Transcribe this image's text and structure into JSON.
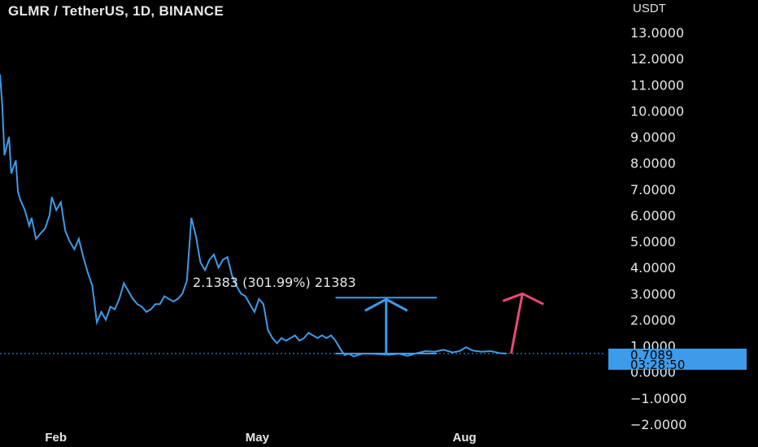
{
  "header": {
    "title": "GLMR / TetherUS, 1D, BINANCE",
    "unit": "USDT"
  },
  "chart_data": {
    "type": "line",
    "title": "GLMR / TetherUS, 1D, BINANCE",
    "ylabel": "USDT",
    "ylim": [
      -2.0,
      13.0
    ],
    "y_ticks": [
      {
        "value": 13,
        "label": "13.0000"
      },
      {
        "value": 12,
        "label": "12.0000"
      },
      {
        "value": 11,
        "label": "11.0000"
      },
      {
        "value": 10,
        "label": "10.0000"
      },
      {
        "value": 9,
        "label": "9.0000"
      },
      {
        "value": 8,
        "label": "8.0000"
      },
      {
        "value": 7,
        "label": "7.0000"
      },
      {
        "value": 6,
        "label": "6.0000"
      },
      {
        "value": 5,
        "label": "5.0000"
      },
      {
        "value": 4,
        "label": "4.0000"
      },
      {
        "value": 3,
        "label": "3.0000"
      },
      {
        "value": 2,
        "label": "2.0000"
      },
      {
        "value": 1,
        "label": "1.0000"
      },
      {
        "value": 0,
        "label": "0.0000"
      },
      {
        "value": -1,
        "label": "−1.0000"
      },
      {
        "value": -2,
        "label": "−2.0000"
      }
    ],
    "x_ticks": [
      {
        "date": "2022-02-01",
        "label": "Feb"
      },
      {
        "date": "2022-05-01",
        "label": "May"
      },
      {
        "date": "2022-08-01",
        "label": "Aug"
      }
    ],
    "xlim": [
      "2022-01-12",
      "2022-11-15"
    ],
    "series": [
      {
        "color": "#3d9be9",
        "points": [
          [
            "2022-01-12",
            11.4
          ],
          [
            "2022-01-13",
            10.2
          ],
          [
            "2022-01-14",
            8.3
          ],
          [
            "2022-01-16",
            9.0
          ],
          [
            "2022-01-17",
            7.6
          ],
          [
            "2022-01-19",
            8.1
          ],
          [
            "2022-01-20",
            6.9
          ],
          [
            "2022-01-21",
            6.6
          ],
          [
            "2022-01-23",
            6.2
          ],
          [
            "2022-01-25",
            5.6
          ],
          [
            "2022-01-26",
            5.9
          ],
          [
            "2022-01-28",
            5.1
          ],
          [
            "2022-01-30",
            5.3
          ],
          [
            "2022-02-01",
            5.5
          ],
          [
            "2022-02-03",
            6.0
          ],
          [
            "2022-02-04",
            6.7
          ],
          [
            "2022-02-06",
            6.2
          ],
          [
            "2022-02-08",
            6.5
          ],
          [
            "2022-02-10",
            5.4
          ],
          [
            "2022-02-12",
            5.0
          ],
          [
            "2022-02-14",
            4.7
          ],
          [
            "2022-02-16",
            5.1
          ],
          [
            "2022-02-18",
            4.4
          ],
          [
            "2022-02-20",
            3.8
          ],
          [
            "2022-02-22",
            3.3
          ],
          [
            "2022-02-24",
            1.9
          ],
          [
            "2022-02-26",
            2.3
          ],
          [
            "2022-02-28",
            2.0
          ],
          [
            "2022-03-02",
            2.5
          ],
          [
            "2022-03-04",
            2.4
          ],
          [
            "2022-03-06",
            2.8
          ],
          [
            "2022-03-08",
            3.4
          ],
          [
            "2022-03-10",
            3.1
          ],
          [
            "2022-03-12",
            2.8
          ],
          [
            "2022-03-14",
            2.6
          ],
          [
            "2022-03-16",
            2.5
          ],
          [
            "2022-03-18",
            2.3
          ],
          [
            "2022-03-20",
            2.4
          ],
          [
            "2022-03-22",
            2.6
          ],
          [
            "2022-03-24",
            2.6
          ],
          [
            "2022-03-26",
            2.9
          ],
          [
            "2022-03-28",
            2.8
          ],
          [
            "2022-03-30",
            2.7
          ],
          [
            "2022-04-01",
            2.8
          ],
          [
            "2022-04-03",
            3.0
          ],
          [
            "2022-04-05",
            3.5
          ],
          [
            "2022-04-07",
            5.9
          ],
          [
            "2022-04-09",
            5.2
          ],
          [
            "2022-04-11",
            4.2
          ],
          [
            "2022-04-13",
            3.9
          ],
          [
            "2022-04-15",
            4.3
          ],
          [
            "2022-04-17",
            4.5
          ],
          [
            "2022-04-19",
            4.0
          ],
          [
            "2022-04-21",
            4.3
          ],
          [
            "2022-04-23",
            4.4
          ],
          [
            "2022-04-25",
            3.7
          ],
          [
            "2022-04-27",
            3.3
          ],
          [
            "2022-04-29",
            3.0
          ],
          [
            "2022-05-01",
            2.9
          ],
          [
            "2022-05-03",
            2.6
          ],
          [
            "2022-05-05",
            2.3
          ],
          [
            "2022-05-07",
            2.8
          ],
          [
            "2022-05-09",
            2.6
          ],
          [
            "2022-05-11",
            1.6
          ],
          [
            "2022-05-13",
            1.3
          ],
          [
            "2022-05-15",
            1.1
          ],
          [
            "2022-05-17",
            1.3
          ],
          [
            "2022-05-19",
            1.2
          ],
          [
            "2022-05-21",
            1.3
          ],
          [
            "2022-05-23",
            1.4
          ],
          [
            "2022-05-25",
            1.2
          ],
          [
            "2022-05-27",
            1.3
          ],
          [
            "2022-05-29",
            1.5
          ],
          [
            "2022-05-31",
            1.4
          ],
          [
            "2022-06-02",
            1.3
          ],
          [
            "2022-06-04",
            1.4
          ],
          [
            "2022-06-06",
            1.3
          ],
          [
            "2022-06-08",
            1.4
          ],
          [
            "2022-06-10",
            1.2
          ],
          [
            "2022-06-12",
            0.9
          ],
          [
            "2022-06-14",
            0.65
          ],
          [
            "2022-06-16",
            0.7
          ],
          [
            "2022-06-18",
            0.6
          ],
          [
            "2022-06-20",
            0.65
          ],
          [
            "2022-06-22",
            0.7
          ],
          [
            "2022-06-26",
            0.7
          ],
          [
            "2022-06-30",
            0.68
          ],
          [
            "2022-07-04",
            0.66
          ],
          [
            "2022-07-08",
            0.7
          ],
          [
            "2022-07-12",
            0.62
          ],
          [
            "2022-07-16",
            0.72
          ],
          [
            "2022-07-20",
            0.8
          ],
          [
            "2022-07-24",
            0.78
          ],
          [
            "2022-07-28",
            0.85
          ],
          [
            "2022-08-01",
            0.75
          ],
          [
            "2022-08-04",
            0.8
          ],
          [
            "2022-08-07",
            0.95
          ],
          [
            "2022-08-10",
            0.82
          ],
          [
            "2022-08-14",
            0.78
          ],
          [
            "2022-08-18",
            0.8
          ],
          [
            "2022-08-22",
            0.72
          ],
          [
            "2022-08-25",
            0.7089
          ]
        ]
      }
    ],
    "last_price": {
      "value": 0.7089,
      "label": "0.7089",
      "countdown": "03:28:50",
      "color": "#3d9be9"
    },
    "measure": {
      "from_value": 0.7089,
      "to_value": 2.8472,
      "start_date": "2022-06-10",
      "end_date": "2022-07-25",
      "label": "2.1383 (301.99%) 21383",
      "color": "#3d9be9"
    },
    "projection_arrow": {
      "from_date": "2022-08-27",
      "from_value": 0.7089,
      "to_date": "2022-09-01",
      "to_value": 3.0,
      "color": "#e8467e"
    },
    "grid": false
  }
}
